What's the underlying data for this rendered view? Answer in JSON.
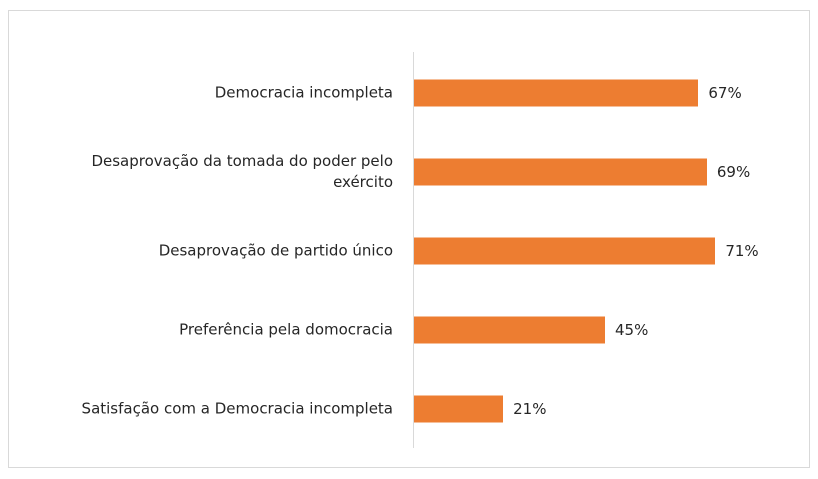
{
  "chart_data": {
    "type": "bar",
    "orientation": "horizontal",
    "categories": [
      "Democracia incompleta",
      "Desaprovação da tomada do poder pelo exército",
      "Desaprovação de partido único",
      "Preferência pela domocracia",
      "Satisfação com a Democracia incompleta"
    ],
    "values": [
      67,
      69,
      71,
      45,
      21
    ],
    "value_labels": [
      "67%",
      "69%",
      "71%",
      "45%",
      "21%"
    ],
    "color": "#ed7d31",
    "xlim": [
      0,
      90
    ]
  }
}
